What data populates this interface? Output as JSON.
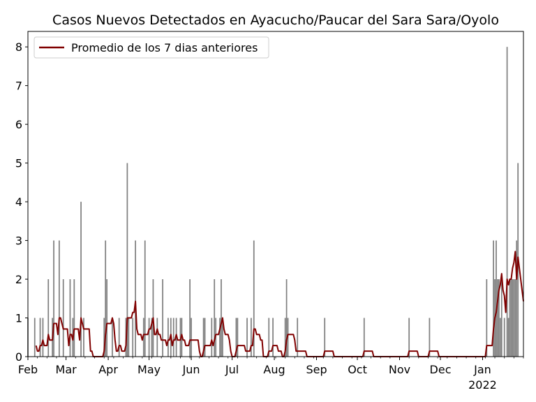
{
  "chart_data": {
    "type": "bar",
    "title": "Casos Nuevos Detectados en Ayacucho/Paucar del Sara Sara/Oyolo",
    "xlabel": "",
    "ylabel": "",
    "x_start": "2021-02-01",
    "x_end": "2022-01-31",
    "ylim": [
      0,
      8.4
    ],
    "yticks": [
      "0",
      "1",
      "2",
      "3",
      "4",
      "5",
      "6",
      "7",
      "8"
    ],
    "xticks": [
      {
        "date": "2021-02-01",
        "label": "Feb"
      },
      {
        "date": "2021-03-01",
        "label": "Mar"
      },
      {
        "date": "2021-04-01",
        "label": "Apr"
      },
      {
        "date": "2021-05-01",
        "label": "May"
      },
      {
        "date": "2021-06-01",
        "label": "Jun"
      },
      {
        "date": "2021-07-01",
        "label": "Jul"
      },
      {
        "date": "2021-08-01",
        "label": "Aug"
      },
      {
        "date": "2021-09-01",
        "label": "Sep"
      },
      {
        "date": "2021-10-01",
        "label": "Oct"
      },
      {
        "date": "2021-11-01",
        "label": "Nov"
      },
      {
        "date": "2021-12-01",
        "label": "Dec"
      },
      {
        "date": "2022-01-01",
        "label": "Jan",
        "sublabel": "2022"
      }
    ],
    "grid": false,
    "legend_placement": "top-left",
    "series": [
      {
        "kind": "bars",
        "color": "#808080",
        "points": [
          [
            "2021-02-01",
            1
          ],
          [
            "2021-02-06",
            1
          ],
          [
            "2021-02-10",
            1
          ],
          [
            "2021-02-12",
            1
          ],
          [
            "2021-02-16",
            2
          ],
          [
            "2021-02-19",
            1
          ],
          [
            "2021-02-20",
            3
          ],
          [
            "2021-02-24",
            3
          ],
          [
            "2021-02-27",
            2
          ],
          [
            "2021-03-04",
            2
          ],
          [
            "2021-03-06",
            1
          ],
          [
            "2021-03-07",
            2
          ],
          [
            "2021-03-12",
            4
          ],
          [
            "2021-03-14",
            1
          ],
          [
            "2021-03-29",
            1
          ],
          [
            "2021-03-30",
            3
          ],
          [
            "2021-03-31",
            2
          ],
          [
            "2021-04-04",
            1
          ],
          [
            "2021-04-09",
            1
          ],
          [
            "2021-04-14",
            1
          ],
          [
            "2021-04-15",
            5
          ],
          [
            "2021-04-16",
            1
          ],
          [
            "2021-04-19",
            1
          ],
          [
            "2021-04-21",
            3
          ],
          [
            "2021-04-27",
            1
          ],
          [
            "2021-04-28",
            3
          ],
          [
            "2021-05-01",
            1
          ],
          [
            "2021-05-03",
            1
          ],
          [
            "2021-05-04",
            2
          ],
          [
            "2021-05-07",
            1
          ],
          [
            "2021-05-11",
            2
          ],
          [
            "2021-05-15",
            1
          ],
          [
            "2021-05-17",
            1
          ],
          [
            "2021-05-19",
            1
          ],
          [
            "2021-05-21",
            1
          ],
          [
            "2021-05-24",
            1
          ],
          [
            "2021-05-25",
            1
          ],
          [
            "2021-05-31",
            2
          ],
          [
            "2021-06-01",
            1
          ],
          [
            "2021-06-10",
            1
          ],
          [
            "2021-06-11",
            1
          ],
          [
            "2021-06-16",
            1
          ],
          [
            "2021-06-18",
            2
          ],
          [
            "2021-06-19",
            1
          ],
          [
            "2021-06-22",
            1
          ],
          [
            "2021-06-23",
            2
          ],
          [
            "2021-06-24",
            1
          ],
          [
            "2021-07-04",
            1
          ],
          [
            "2021-07-05",
            1
          ],
          [
            "2021-07-12",
            1
          ],
          [
            "2021-07-15",
            1
          ],
          [
            "2021-07-17",
            3
          ],
          [
            "2021-07-28",
            1
          ],
          [
            "2021-07-31",
            1
          ],
          [
            "2021-08-09",
            1
          ],
          [
            "2021-08-10",
            2
          ],
          [
            "2021-08-11",
            1
          ],
          [
            "2021-08-18",
            1
          ],
          [
            "2021-09-07",
            1
          ],
          [
            "2021-10-06",
            1
          ],
          [
            "2021-11-08",
            1
          ],
          [
            "2021-11-23",
            1
          ],
          [
            "2022-01-04",
            2
          ],
          [
            "2022-01-09",
            3
          ],
          [
            "2022-01-10",
            2
          ],
          [
            "2022-01-11",
            3
          ],
          [
            "2022-01-12",
            2
          ],
          [
            "2022-01-13",
            2
          ],
          [
            "2022-01-14",
            1
          ],
          [
            "2022-01-15",
            2
          ],
          [
            "2022-01-17",
            1
          ],
          [
            "2022-01-19",
            8
          ],
          [
            "2022-01-20",
            1
          ],
          [
            "2022-01-21",
            2
          ],
          [
            "2022-01-22",
            2
          ],
          [
            "2022-01-23",
            2
          ],
          [
            "2022-01-24",
            2
          ],
          [
            "2022-01-25",
            2
          ],
          [
            "2022-01-26",
            3
          ],
          [
            "2022-01-27",
            5
          ]
        ]
      },
      {
        "kind": "line",
        "name": "Promedio de los 7 dias anteriores",
        "color": "#800000"
      }
    ]
  }
}
